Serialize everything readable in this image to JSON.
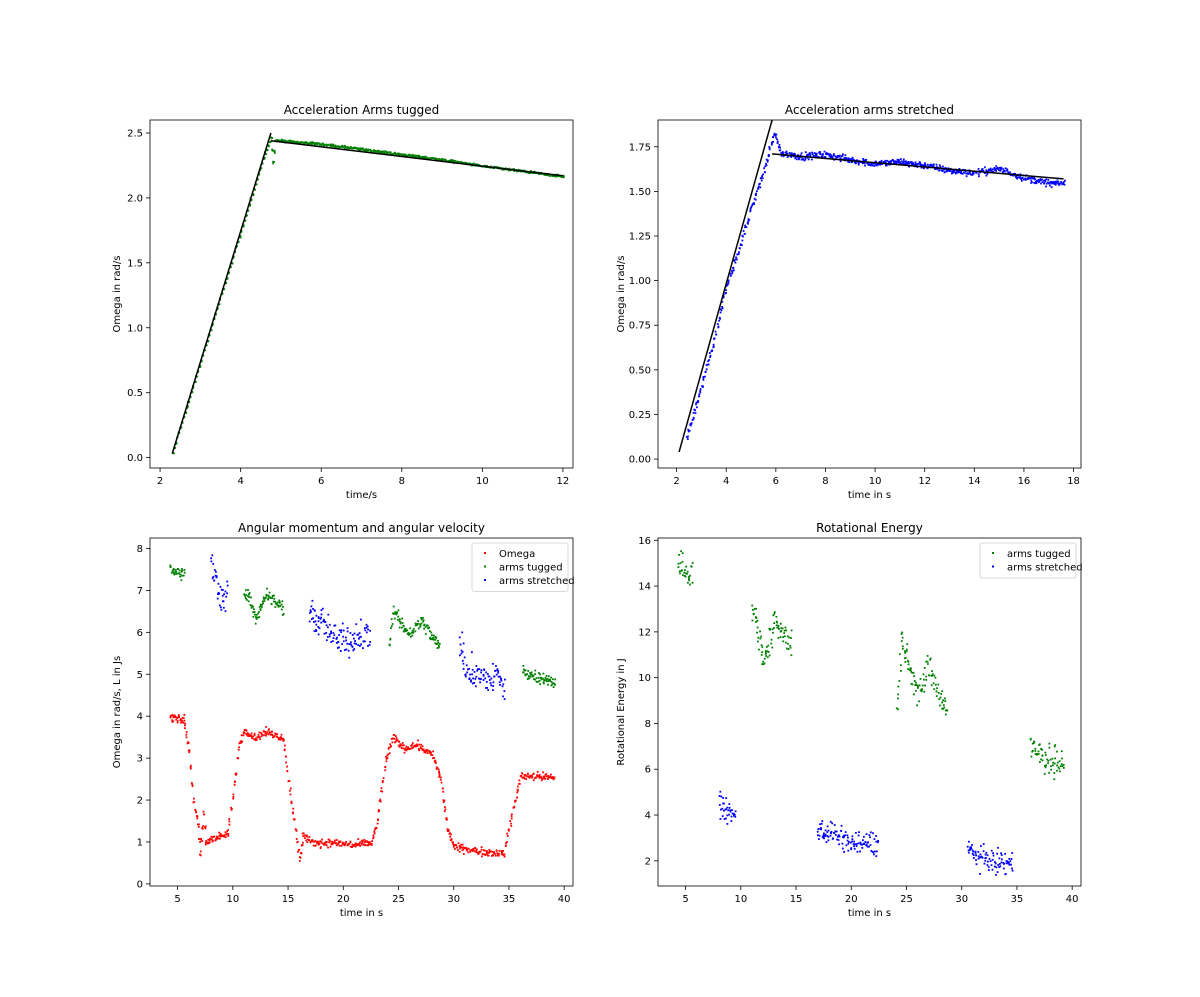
{
  "chart_data": [
    {
      "type": "scatter",
      "title": "Acceleration Arms tugged",
      "xlabel": "time/s",
      "ylabel": "Omega in rad/s",
      "xlim": [
        1.75,
        12.25
      ],
      "ylim": [
        -0.08,
        2.6
      ],
      "xticks": [
        2,
        4,
        6,
        8,
        10,
        12
      ],
      "yticks": [
        0.0,
        0.5,
        1.0,
        1.5,
        2.0,
        2.5
      ],
      "ytick_labels": [
        "0.0",
        "0.5",
        "1.0",
        "1.5",
        "2.0",
        "2.5"
      ],
      "grid": false,
      "legend": "none",
      "series": [
        {
          "color": "#008000",
          "noise": 0.012,
          "points": [
            [
              2.3,
              0.04
            ],
            [
              3.0,
              0.75
            ],
            [
              3.6,
              1.35
            ],
            [
              4.2,
              1.95
            ],
            [
              4.6,
              2.35
            ],
            [
              4.75,
              2.47
            ],
            [
              4.8,
              2.28
            ],
            [
              4.85,
              2.45
            ],
            [
              5.2,
              2.44
            ],
            [
              6.0,
              2.42
            ],
            [
              7.0,
              2.38
            ],
            [
              8.0,
              2.34
            ],
            [
              9.0,
              2.3
            ],
            [
              10.0,
              2.25
            ],
            [
              11.0,
              2.21
            ],
            [
              12.0,
              2.17
            ]
          ]
        }
      ],
      "fit_lines": [
        {
          "color": "#000000",
          "points": [
            [
              2.3,
              0.03
            ],
            [
              4.75,
              2.5
            ]
          ]
        },
        {
          "color": "#000000",
          "points": [
            [
              4.75,
              2.44
            ],
            [
              12.0,
              2.17
            ]
          ]
        }
      ]
    },
    {
      "type": "scatter",
      "title": "Acceleration arms stretched",
      "xlabel": "time in s",
      "ylabel": "Omega in rad/s",
      "xlim": [
        1.25,
        18.3
      ],
      "ylim": [
        -0.05,
        1.9
      ],
      "xticks": [
        2,
        4,
        6,
        8,
        10,
        12,
        14,
        16,
        18
      ],
      "yticks": [
        0.0,
        0.25,
        0.5,
        0.75,
        1.0,
        1.25,
        1.5,
        1.75
      ],
      "ytick_labels": [
        "0.00",
        "0.25",
        "0.50",
        "0.75",
        "1.00",
        "1.25",
        "1.50",
        "1.75"
      ],
      "grid": false,
      "legend": "none",
      "series": [
        {
          "color": "#0000ff",
          "noise": 0.035,
          "points": [
            [
              2.4,
              0.13
            ],
            [
              3.0,
              0.42
            ],
            [
              3.5,
              0.68
            ],
            [
              4.0,
              0.98
            ],
            [
              4.5,
              1.18
            ],
            [
              5.0,
              1.42
            ],
            [
              5.5,
              1.62
            ],
            [
              5.9,
              1.83
            ],
            [
              6.2,
              1.72
            ],
            [
              7.0,
              1.7
            ],
            [
              8.0,
              1.71
            ],
            [
              9.0,
              1.68
            ],
            [
              10.0,
              1.66
            ],
            [
              11.0,
              1.67
            ],
            [
              12.0,
              1.65
            ],
            [
              13.0,
              1.62
            ],
            [
              14.0,
              1.61
            ],
            [
              15.0,
              1.63
            ],
            [
              16.0,
              1.58
            ],
            [
              17.0,
              1.55
            ],
            [
              17.6,
              1.55
            ]
          ]
        }
      ],
      "fit_lines": [
        {
          "color": "#000000",
          "points": [
            [
              2.1,
              0.04
            ],
            [
              5.85,
              1.9
            ]
          ]
        },
        {
          "color": "#000000",
          "points": [
            [
              5.85,
              1.71
            ],
            [
              17.6,
              1.57
            ]
          ]
        }
      ]
    },
    {
      "type": "scatter",
      "title": "Angular momentum and angular velocity",
      "xlabel": "time in s",
      "ylabel": "Omega in rad/s, L in Js",
      "xlim": [
        2.5,
        40.8
      ],
      "ylim": [
        -0.05,
        8.25
      ],
      "xticks": [
        5,
        10,
        15,
        20,
        25,
        30,
        35,
        40
      ],
      "yticks": [
        0,
        1,
        2,
        3,
        4,
        5,
        6,
        7,
        8
      ],
      "ytick_labels": [
        "0",
        "1",
        "2",
        "3",
        "4",
        "5",
        "6",
        "7",
        "8"
      ],
      "grid": false,
      "legend": "top-right",
      "series": [
        {
          "name": "Omega",
          "color": "#ff0000",
          "noise": 0.04,
          "points": [
            [
              4.3,
              4.0
            ],
            [
              5.5,
              3.95
            ],
            [
              6.0,
              3.2
            ],
            [
              6.4,
              2.0
            ],
            [
              6.8,
              1.4
            ],
            [
              7.0,
              0.7
            ],
            [
              7.3,
              1.7
            ],
            [
              7.5,
              1.0
            ],
            [
              8.0,
              1.1
            ],
            [
              9.5,
              1.2
            ],
            [
              10.5,
              3.3
            ],
            [
              11.0,
              3.7
            ],
            [
              12.0,
              3.5
            ],
            [
              13.0,
              3.65
            ],
            [
              14.5,
              3.5
            ],
            [
              15.0,
              2.5
            ],
            [
              15.5,
              1.5
            ],
            [
              16.0,
              0.6
            ],
            [
              16.3,
              1.2
            ],
            [
              17.0,
              1.0
            ],
            [
              19.0,
              1.0
            ],
            [
              21.0,
              0.95
            ],
            [
              22.5,
              1.0
            ],
            [
              23.0,
              1.5
            ],
            [
              23.8,
              3.0
            ],
            [
              24.5,
              3.5
            ],
            [
              25.5,
              3.25
            ],
            [
              26.5,
              3.35
            ],
            [
              28.0,
              3.1
            ],
            [
              28.8,
              2.5
            ],
            [
              29.4,
              1.3
            ],
            [
              30.0,
              0.9
            ],
            [
              32.0,
              0.8
            ],
            [
              34.5,
              0.75
            ],
            [
              35.5,
              2.0
            ],
            [
              36.0,
              2.6
            ],
            [
              37.0,
              2.6
            ],
            [
              39.0,
              2.55
            ]
          ]
        },
        {
          "name": "arms tugged",
          "color": "#008000",
          "noise": 0.07,
          "segments": [
            [
              [
                4.3,
                7.55
              ],
              [
                4.8,
                7.45
              ],
              [
                5.5,
                7.4
              ]
            ],
            [
              [
                11.0,
                7.0
              ],
              [
                11.5,
                6.8
              ],
              [
                12.0,
                6.4
              ],
              [
                12.5,
                6.6
              ],
              [
                13.0,
                6.9
              ],
              [
                13.5,
                6.8
              ],
              [
                14.5,
                6.6
              ]
            ],
            [
              [
                24.1,
                5.7
              ],
              [
                24.5,
                6.5
              ],
              [
                25.0,
                6.3
              ],
              [
                25.5,
                6.1
              ],
              [
                26.0,
                6.0
              ],
              [
                27.0,
                6.3
              ],
              [
                28.0,
                5.9
              ],
              [
                28.6,
                5.7
              ]
            ],
            [
              [
                36.2,
                5.1
              ],
              [
                37.0,
                5.0
              ],
              [
                38.0,
                4.95
              ],
              [
                39.1,
                4.8
              ]
            ]
          ]
        },
        {
          "name": "arms stretched",
          "color": "#0000ff",
          "noise": 0.16,
          "segments": [
            [
              [
                8.0,
                7.6
              ],
              [
                8.5,
                7.2
              ],
              [
                9.0,
                6.8
              ],
              [
                9.4,
                6.9
              ]
            ],
            [
              [
                16.9,
                6.6
              ],
              [
                17.5,
                6.2
              ],
              [
                18.0,
                6.3
              ],
              [
                19.0,
                5.9
              ],
              [
                20.0,
                5.8
              ],
              [
                21.0,
                5.9
              ],
              [
                22.3,
                6.0
              ]
            ],
            [
              [
                30.5,
                5.8
              ],
              [
                31.0,
                5.1
              ],
              [
                32.0,
                5.0
              ],
              [
                33.0,
                4.9
              ],
              [
                34.0,
                5.0
              ],
              [
                34.5,
                4.6
              ]
            ]
          ]
        }
      ]
    },
    {
      "type": "scatter",
      "title": "Rotational Energy",
      "xlabel": "time in s",
      "ylabel": "Rotational Energy in J",
      "xlim": [
        2.5,
        40.8
      ],
      "ylim": [
        0.9,
        16.1
      ],
      "xticks": [
        5,
        10,
        15,
        20,
        25,
        30,
        35,
        40
      ],
      "yticks": [
        2,
        4,
        6,
        8,
        10,
        12,
        14,
        16
      ],
      "ytick_labels": [
        "2",
        "4",
        "6",
        "8",
        "10",
        "12",
        "14",
        "16"
      ],
      "grid": false,
      "legend": "top-right",
      "series": [
        {
          "name": "arms tugged",
          "color": "#008000",
          "noise": 0.15,
          "segments": [
            [
              [
                4.3,
                15.1
              ],
              [
                4.8,
                14.8
              ],
              [
                5.5,
                14.6
              ]
            ],
            [
              [
                11.0,
                13.1
              ],
              [
                11.5,
                12.0
              ],
              [
                12.0,
                10.9
              ],
              [
                12.5,
                11.5
              ],
              [
                13.0,
                12.5
              ],
              [
                13.5,
                12.1
              ],
              [
                14.5,
                11.6
              ]
            ],
            [
              [
                24.1,
                8.6
              ],
              [
                24.5,
                11.5
              ],
              [
                25.0,
                10.9
              ],
              [
                25.5,
                10.0
              ],
              [
                26.0,
                9.3
              ],
              [
                27.0,
                10.5
              ],
              [
                28.0,
                9.2
              ],
              [
                28.6,
                8.6
              ]
            ],
            [
              [
                36.2,
                6.9
              ],
              [
                37.0,
                6.6
              ],
              [
                38.0,
                6.5
              ],
              [
                39.1,
                6.2
              ]
            ]
          ]
        },
        {
          "name": "arms stretched",
          "color": "#0000ff",
          "noise": 0.12,
          "segments": [
            [
              [
                8.0,
                4.6
              ],
              [
                8.5,
                4.3
              ],
              [
                9.0,
                4.0
              ],
              [
                9.4,
                4.0
              ]
            ],
            [
              [
                16.9,
                3.5
              ],
              [
                17.5,
                3.3
              ],
              [
                18.0,
                3.3
              ],
              [
                19.0,
                3.0
              ],
              [
                20.0,
                2.8
              ],
              [
                21.0,
                2.8
              ],
              [
                22.3,
                2.8
              ]
            ],
            [
              [
                30.5,
                2.7
              ],
              [
                31.0,
                2.3
              ],
              [
                32.0,
                2.1
              ],
              [
                33.0,
                2.0
              ],
              [
                34.0,
                1.9
              ],
              [
                34.5,
                1.8
              ]
            ]
          ]
        }
      ]
    }
  ]
}
